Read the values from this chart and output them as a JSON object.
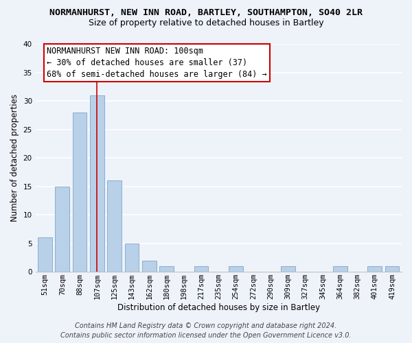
{
  "title_line1": "NORMANHURST, NEW INN ROAD, BARTLEY, SOUTHAMPTON, SO40 2LR",
  "title_line2": "Size of property relative to detached houses in Bartley",
  "xlabel": "Distribution of detached houses by size in Bartley",
  "ylabel": "Number of detached properties",
  "bar_labels": [
    "51sqm",
    "70sqm",
    "88sqm",
    "107sqm",
    "125sqm",
    "143sqm",
    "162sqm",
    "180sqm",
    "198sqm",
    "217sqm",
    "235sqm",
    "254sqm",
    "272sqm",
    "290sqm",
    "309sqm",
    "327sqm",
    "345sqm",
    "364sqm",
    "382sqm",
    "401sqm",
    "419sqm"
  ],
  "bar_values": [
    6,
    15,
    28,
    31,
    16,
    5,
    2,
    1,
    0,
    1,
    0,
    1,
    0,
    0,
    1,
    0,
    0,
    1,
    0,
    1,
    1
  ],
  "bar_color": "#b8d0e8",
  "bar_edgecolor": "#88afd0",
  "ylim": [
    0,
    40
  ],
  "yticks": [
    0,
    5,
    10,
    15,
    20,
    25,
    30,
    35,
    40
  ],
  "vline_x_index": 3,
  "vline_color": "#cc0000",
  "annotation_line1": "NORMANHURST NEW INN ROAD: 100sqm",
  "annotation_line2": "← 30% of detached houses are smaller (37)",
  "annotation_line3": "68% of semi-detached houses are larger (84) →",
  "annotation_box_edgecolor": "#cc0000",
  "background_color": "#eef2f9",
  "plot_bg_color": "#eef2f9",
  "footer_line1": "Contains HM Land Registry data © Crown copyright and database right 2024.",
  "footer_line2": "Contains public sector information licensed under the Open Government Licence v3.0.",
  "title_fontsize": 9.5,
  "subtitle_fontsize": 9,
  "axis_label_fontsize": 8.5,
  "tick_fontsize": 7.5,
  "annotation_fontsize": 8.5,
  "footer_fontsize": 7
}
